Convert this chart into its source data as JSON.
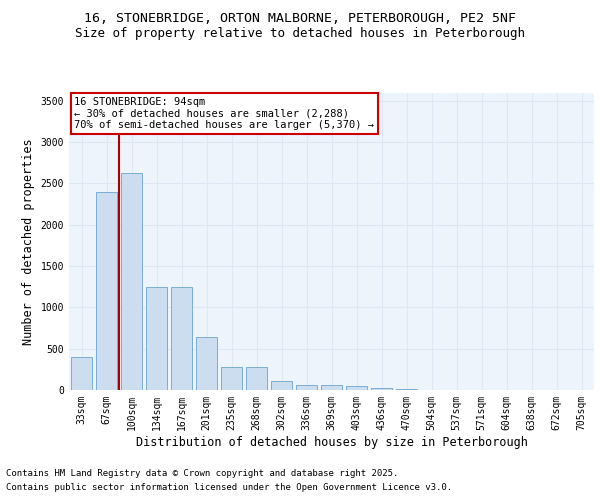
{
  "title_line1": "16, STONEBRIDGE, ORTON MALBORNE, PETERBOROUGH, PE2 5NF",
  "title_line2": "Size of property relative to detached houses in Peterborough",
  "xlabel": "Distribution of detached houses by size in Peterborough",
  "ylabel": "Number of detached properties",
  "categories": [
    "33sqm",
    "67sqm",
    "100sqm",
    "134sqm",
    "167sqm",
    "201sqm",
    "235sqm",
    "268sqm",
    "302sqm",
    "336sqm",
    "369sqm",
    "403sqm",
    "436sqm",
    "470sqm",
    "504sqm",
    "537sqm",
    "571sqm",
    "604sqm",
    "638sqm",
    "672sqm",
    "705sqm"
  ],
  "values": [
    400,
    2400,
    2625,
    1250,
    1250,
    640,
    275,
    275,
    110,
    60,
    55,
    50,
    30,
    10,
    5,
    3,
    2,
    1,
    0,
    0,
    0
  ],
  "bar_color": "#ccddf0",
  "bar_edge_color": "#7aadd4",
  "vline_x": 1.5,
  "vline_color": "#aa0000",
  "annotation_text": "16 STONEBRIDGE: 94sqm\n← 30% of detached houses are smaller (2,288)\n70% of semi-detached houses are larger (5,370) →",
  "annotation_box_color": "#cc0000",
  "ylim": [
    0,
    3600
  ],
  "yticks": [
    0,
    500,
    1000,
    1500,
    2000,
    2500,
    3000,
    3500
  ],
  "grid_color": "#dde8f4",
  "background_color": "#eef4fb",
  "footer_line1": "Contains HM Land Registry data © Crown copyright and database right 2025.",
  "footer_line2": "Contains public sector information licensed under the Open Government Licence v3.0.",
  "title_fontsize": 9.5,
  "subtitle_fontsize": 9,
  "axis_label_fontsize": 8.5,
  "tick_fontsize": 7,
  "annotation_fontsize": 7.5,
  "footer_fontsize": 6.5
}
